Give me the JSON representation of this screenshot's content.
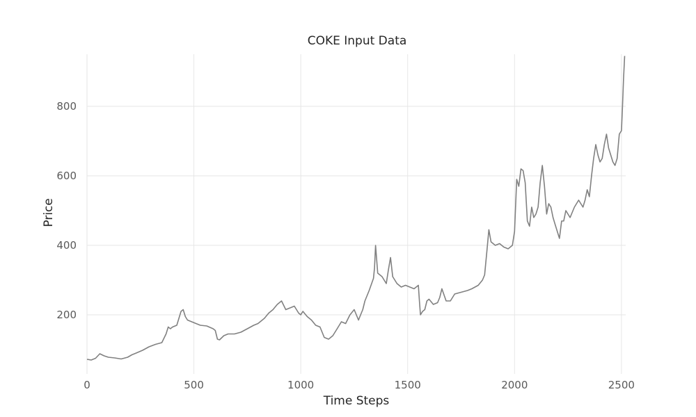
{
  "chart_data": {
    "type": "line",
    "title": "COKE Input Data",
    "xlabel": "Time Steps",
    "ylabel": "Price",
    "xlim": [
      0,
      2520
    ],
    "ylim": [
      30,
      950
    ],
    "xticks": [
      0,
      500,
      1000,
      1500,
      2000,
      2500
    ],
    "yticks": [
      200,
      400,
      600,
      800
    ],
    "grid": true,
    "line_color": "#808080",
    "series": [
      {
        "x": [
          0,
          20,
          40,
          60,
          80,
          100,
          130,
          160,
          190,
          210,
          230,
          260,
          290,
          320,
          350,
          370,
          380,
          390,
          400,
          420,
          440,
          450,
          460,
          470,
          490,
          510,
          530,
          560,
          590,
          600,
          610,
          620,
          640,
          660,
          690,
          720,
          750,
          780,
          800,
          830,
          850,
          870,
          890,
          910,
          930,
          950,
          970,
          990,
          1000,
          1010,
          1030,
          1050,
          1070,
          1090,
          1110,
          1130,
          1150,
          1170,
          1190,
          1210,
          1230,
          1250,
          1270,
          1280,
          1290,
          1300,
          1320,
          1340,
          1345,
          1350,
          1360,
          1380,
          1400,
          1410,
          1420,
          1430,
          1450,
          1470,
          1490,
          1510,
          1530,
          1550,
          1555,
          1560,
          1570,
          1580,
          1590,
          1600,
          1620,
          1640,
          1650,
          1660,
          1680,
          1700,
          1720,
          1750,
          1780,
          1800,
          1830,
          1850,
          1860,
          1870,
          1880,
          1890,
          1910,
          1930,
          1950,
          1970,
          1990,
          2000,
          2010,
          2020,
          2030,
          2040,
          2050,
          2060,
          2070,
          2080,
          2090,
          2100,
          2110,
          2120,
          2130,
          2140,
          2150,
          2160,
          2170,
          2180,
          2190,
          2200,
          2210,
          2220,
          2230,
          2240,
          2260,
          2280,
          2300,
          2320,
          2330,
          2340,
          2350,
          2360,
          2370,
          2380,
          2390,
          2400,
          2410,
          2420,
          2430,
          2440,
          2450,
          2460,
          2470,
          2480,
          2490,
          2500,
          2505,
          2510,
          2515
        ],
        "values": [
          72,
          70,
          75,
          88,
          82,
          78,
          76,
          73,
          78,
          85,
          90,
          98,
          108,
          115,
          120,
          145,
          165,
          160,
          165,
          170,
          210,
          215,
          195,
          185,
          180,
          175,
          170,
          168,
          160,
          155,
          130,
          128,
          140,
          145,
          145,
          150,
          160,
          170,
          175,
          190,
          205,
          215,
          230,
          240,
          215,
          220,
          225,
          205,
          200,
          210,
          195,
          185,
          170,
          165,
          135,
          130,
          140,
          160,
          180,
          175,
          200,
          215,
          185,
          200,
          215,
          240,
          270,
          305,
          335,
          400,
          320,
          310,
          290,
          330,
          365,
          310,
          290,
          280,
          285,
          280,
          275,
          285,
          240,
          200,
          210,
          215,
          240,
          245,
          230,
          235,
          250,
          275,
          240,
          240,
          260,
          265,
          270,
          275,
          285,
          300,
          315,
          380,
          445,
          410,
          400,
          405,
          395,
          390,
          400,
          440,
          590,
          570,
          620,
          615,
          580,
          470,
          455,
          510,
          480,
          490,
          510,
          580,
          630,
          570,
          490,
          520,
          510,
          480,
          460,
          440,
          420,
          470,
          470,
          500,
          480,
          510,
          530,
          510,
          530,
          560,
          540,
          600,
          650,
          690,
          660,
          640,
          650,
          690,
          720,
          680,
          660,
          640,
          630,
          650,
          720,
          730,
          800,
          880,
          945
        ]
      }
    ]
  }
}
